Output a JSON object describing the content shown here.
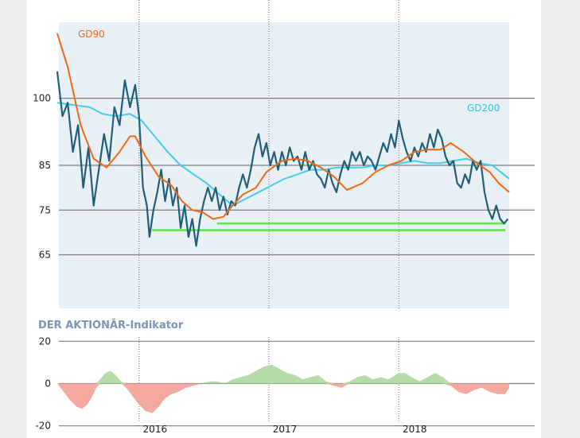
{
  "chart_data": [
    {
      "type": "line",
      "ylim": [
        53,
        117
      ],
      "yticks": [
        100,
        85,
        75,
        65
      ],
      "xlim": [
        2015.37,
        2018.85
      ],
      "xticks": [
        2016,
        2017,
        2018
      ],
      "grid": true,
      "annotations": [
        "GD90",
        "GD200"
      ],
      "series": [
        {
          "name": "GD90",
          "color": "#ef6a12",
          "points": [
            [
              2015.37,
              114.5
            ],
            [
              2015.45,
              107
            ],
            [
              2015.55,
              94
            ],
            [
              2015.65,
              86.5
            ],
            [
              2015.75,
              84.5
            ],
            [
              2015.85,
              88
            ],
            [
              2015.93,
              91.5
            ],
            [
              2015.97,
              91.5
            ],
            [
              2016.05,
              87
            ],
            [
              2016.15,
              82.5
            ],
            [
              2016.25,
              80.5
            ],
            [
              2016.33,
              77
            ],
            [
              2016.41,
              75
            ],
            [
              2016.49,
              74.5
            ],
            [
              2016.57,
              73
            ],
            [
              2016.65,
              73.5
            ],
            [
              2016.72,
              76
            ],
            [
              2016.8,
              78.5
            ],
            [
              2016.9,
              80
            ],
            [
              2016.98,
              83.5
            ],
            [
              2017.1,
              86
            ],
            [
              2017.2,
              86.5
            ],
            [
              2017.3,
              86
            ],
            [
              2017.4,
              84.5
            ],
            [
              2017.5,
              82.5
            ],
            [
              2017.6,
              79.5
            ],
            [
              2017.72,
              81
            ],
            [
              2017.82,
              83.5
            ],
            [
              2017.92,
              85
            ],
            [
              2018.02,
              86
            ],
            [
              2018.12,
              88
            ],
            [
              2018.22,
              88.5
            ],
            [
              2018.32,
              88.5
            ],
            [
              2018.4,
              90
            ],
            [
              2018.5,
              88
            ],
            [
              2018.6,
              85.5
            ],
            [
              2018.7,
              83.5
            ],
            [
              2018.77,
              81
            ],
            [
              2018.85,
              79
            ]
          ]
        },
        {
          "name": "GD200",
          "color": "#44ccee",
          "points": [
            [
              2015.37,
              99
            ],
            [
              2015.5,
              98.5
            ],
            [
              2015.62,
              98
            ],
            [
              2015.72,
              96.5
            ],
            [
              2015.82,
              96
            ],
            [
              2015.93,
              96.5
            ],
            [
              2016.02,
              95
            ],
            [
              2016.12,
              91.5
            ],
            [
              2016.22,
              88
            ],
            [
              2016.32,
              85
            ],
            [
              2016.42,
              83
            ],
            [
              2016.52,
              81
            ],
            [
              2016.62,
              78.5
            ],
            [
              2016.72,
              76
            ],
            [
              2016.82,
              77.5
            ],
            [
              2016.92,
              79
            ],
            [
              2017.02,
              80.5
            ],
            [
              2017.12,
              82
            ],
            [
              2017.22,
              83
            ],
            [
              2017.32,
              84
            ],
            [
              2017.42,
              84
            ],
            [
              2017.52,
              84.5
            ],
            [
              2017.62,
              84.5
            ],
            [
              2017.72,
              84.5
            ],
            [
              2017.82,
              85
            ],
            [
              2017.92,
              85
            ],
            [
              2018.02,
              85.5
            ],
            [
              2018.12,
              86
            ],
            [
              2018.22,
              85.5
            ],
            [
              2018.32,
              85.5
            ],
            [
              2018.42,
              86
            ],
            [
              2018.52,
              86.5
            ],
            [
              2018.62,
              85.5
            ],
            [
              2018.72,
              85
            ],
            [
              2018.85,
              82
            ]
          ]
        },
        {
          "name": "",
          "color": "#1f5f7a",
          "points": [
            [
              2015.37,
              106
            ],
            [
              2015.41,
              96
            ],
            [
              2015.45,
              99
            ],
            [
              2015.49,
              88
            ],
            [
              2015.53,
              94
            ],
            [
              2015.57,
              80
            ],
            [
              2015.61,
              89
            ],
            [
              2015.65,
              76
            ],
            [
              2015.69,
              84
            ],
            [
              2015.73,
              92
            ],
            [
              2015.77,
              86
            ],
            [
              2015.81,
              98
            ],
            [
              2015.85,
              94
            ],
            [
              2015.89,
              104
            ],
            [
              2015.93,
              98
            ],
            [
              2015.97,
              103
            ],
            [
              2016.0,
              96
            ],
            [
              2016.03,
              80
            ],
            [
              2016.06,
              76
            ],
            [
              2016.08,
              69
            ],
            [
              2016.11,
              75
            ],
            [
              2016.14,
              79
            ],
            [
              2016.17,
              84
            ],
            [
              2016.2,
              77
            ],
            [
              2016.23,
              82
            ],
            [
              2016.26,
              76
            ],
            [
              2016.29,
              80
            ],
            [
              2016.32,
              71
            ],
            [
              2016.35,
              76
            ],
            [
              2016.38,
              69
            ],
            [
              2016.41,
              73
            ],
            [
              2016.44,
              67
            ],
            [
              2016.47,
              73
            ],
            [
              2016.5,
              77
            ],
            [
              2016.53,
              80
            ],
            [
              2016.56,
              77
            ],
            [
              2016.59,
              80
            ],
            [
              2016.62,
              75
            ],
            [
              2016.65,
              78
            ],
            [
              2016.68,
              74
            ],
            [
              2016.71,
              77
            ],
            [
              2016.74,
              76
            ],
            [
              2016.77,
              80
            ],
            [
              2016.8,
              83
            ],
            [
              2016.83,
              80
            ],
            [
              2016.86,
              84
            ],
            [
              2016.89,
              89
            ],
            [
              2016.92,
              92
            ],
            [
              2016.95,
              87
            ],
            [
              2016.98,
              90
            ],
            [
              2017.01,
              85
            ],
            [
              2017.04,
              88
            ],
            [
              2017.07,
              84
            ],
            [
              2017.1,
              88
            ],
            [
              2017.13,
              85
            ],
            [
              2017.16,
              89
            ],
            [
              2017.19,
              86
            ],
            [
              2017.22,
              87
            ],
            [
              2017.25,
              84
            ],
            [
              2017.28,
              88
            ],
            [
              2017.31,
              84
            ],
            [
              2017.34,
              86
            ],
            [
              2017.37,
              83
            ],
            [
              2017.4,
              82
            ],
            [
              2017.43,
              80
            ],
            [
              2017.46,
              84
            ],
            [
              2017.49,
              81
            ],
            [
              2017.52,
              79
            ],
            [
              2017.55,
              83
            ],
            [
              2017.58,
              86
            ],
            [
              2017.61,
              84
            ],
            [
              2017.64,
              88
            ],
            [
              2017.67,
              86
            ],
            [
              2017.7,
              88
            ],
            [
              2017.73,
              85
            ],
            [
              2017.76,
              87
            ],
            [
              2017.79,
              86
            ],
            [
              2017.82,
              84
            ],
            [
              2017.85,
              87
            ],
            [
              2017.88,
              90
            ],
            [
              2017.91,
              88
            ],
            [
              2017.94,
              92
            ],
            [
              2017.97,
              89
            ],
            [
              2018.0,
              95
            ],
            [
              2018.03,
              91
            ],
            [
              2018.06,
              88
            ],
            [
              2018.09,
              86
            ],
            [
              2018.12,
              89
            ],
            [
              2018.15,
              87
            ],
            [
              2018.18,
              90
            ],
            [
              2018.21,
              88
            ],
            [
              2018.24,
              92
            ],
            [
              2018.27,
              89
            ],
            [
              2018.3,
              93
            ],
            [
              2018.33,
              91
            ],
            [
              2018.36,
              87
            ],
            [
              2018.39,
              85
            ],
            [
              2018.42,
              86
            ],
            [
              2018.45,
              81
            ],
            [
              2018.48,
              80
            ],
            [
              2018.51,
              83
            ],
            [
              2018.54,
              81
            ],
            [
              2018.57,
              86
            ],
            [
              2018.6,
              84
            ],
            [
              2018.63,
              86
            ],
            [
              2018.66,
              79
            ],
            [
              2018.69,
              75
            ],
            [
              2018.72,
              73
            ],
            [
              2018.75,
              76
            ],
            [
              2018.78,
              73
            ],
            [
              2018.81,
              72
            ],
            [
              2018.84,
              73
            ]
          ]
        }
      ],
      "support_lines": [
        {
          "y": 72,
          "x_from": 2016.6,
          "x_to": 2018.82,
          "color": "#66e34a"
        },
        {
          "y": 70.5,
          "x_from": 2016.1,
          "x_to": 2018.82,
          "color": "#66e34a"
        }
      ]
    },
    {
      "type": "area",
      "title": "DER AKTIONĀR-Indikator",
      "ylim": [
        -22,
        22
      ],
      "yticks": [
        20,
        0,
        -20
      ],
      "xlim": [
        2015.37,
        2018.85
      ],
      "xticks": [
        2016,
        2017,
        2018
      ],
      "xtick_labels": [
        "2016",
        "2017",
        "2018"
      ],
      "grid": true,
      "positive_color": "#b5dca6",
      "negative_color": "#f4a8a0",
      "points": [
        [
          2015.37,
          0
        ],
        [
          2015.42,
          -4
        ],
        [
          2015.47,
          -8
        ],
        [
          2015.52,
          -11
        ],
        [
          2015.56,
          -12
        ],
        [
          2015.6,
          -10
        ],
        [
          2015.64,
          -6
        ],
        [
          2015.67,
          -2
        ],
        [
          2015.7,
          2
        ],
        [
          2015.74,
          5
        ],
        [
          2015.78,
          6
        ],
        [
          2015.82,
          4
        ],
        [
          2015.86,
          1
        ],
        [
          2015.9,
          -2
        ],
        [
          2015.95,
          -6
        ],
        [
          2016.0,
          -10
        ],
        [
          2016.05,
          -13
        ],
        [
          2016.1,
          -14
        ],
        [
          2016.15,
          -11
        ],
        [
          2016.2,
          -7
        ],
        [
          2016.25,
          -5
        ],
        [
          2016.3,
          -4
        ],
        [
          2016.36,
          -2
        ],
        [
          2016.42,
          -1
        ],
        [
          2016.48,
          0
        ],
        [
          2016.54,
          1
        ],
        [
          2016.6,
          1
        ],
        [
          2016.66,
          0
        ],
        [
          2016.72,
          2
        ],
        [
          2016.78,
          3
        ],
        [
          2016.84,
          4
        ],
        [
          2016.9,
          6
        ],
        [
          2016.96,
          8
        ],
        [
          2017.02,
          9
        ],
        [
          2017.08,
          7
        ],
        [
          2017.14,
          5
        ],
        [
          2017.2,
          4
        ],
        [
          2017.26,
          2
        ],
        [
          2017.32,
          3
        ],
        [
          2017.38,
          4
        ],
        [
          2017.44,
          1
        ],
        [
          2017.5,
          -1
        ],
        [
          2017.56,
          -2
        ],
        [
          2017.62,
          1
        ],
        [
          2017.68,
          3
        ],
        [
          2017.74,
          4
        ],
        [
          2017.8,
          2
        ],
        [
          2017.86,
          3
        ],
        [
          2017.92,
          2
        ],
        [
          2018.0,
          5
        ],
        [
          2018.05,
          5
        ],
        [
          2018.1,
          3
        ],
        [
          2018.16,
          1
        ],
        [
          2018.22,
          3
        ],
        [
          2018.28,
          5
        ],
        [
          2018.34,
          3
        ],
        [
          2018.4,
          -1
        ],
        [
          2018.46,
          -4
        ],
        [
          2018.52,
          -5
        ],
        [
          2018.58,
          -3
        ],
        [
          2018.64,
          -2
        ],
        [
          2018.7,
          -4
        ],
        [
          2018.76,
          -5
        ],
        [
          2018.82,
          -5
        ],
        [
          2018.85,
          -2
        ]
      ]
    }
  ]
}
